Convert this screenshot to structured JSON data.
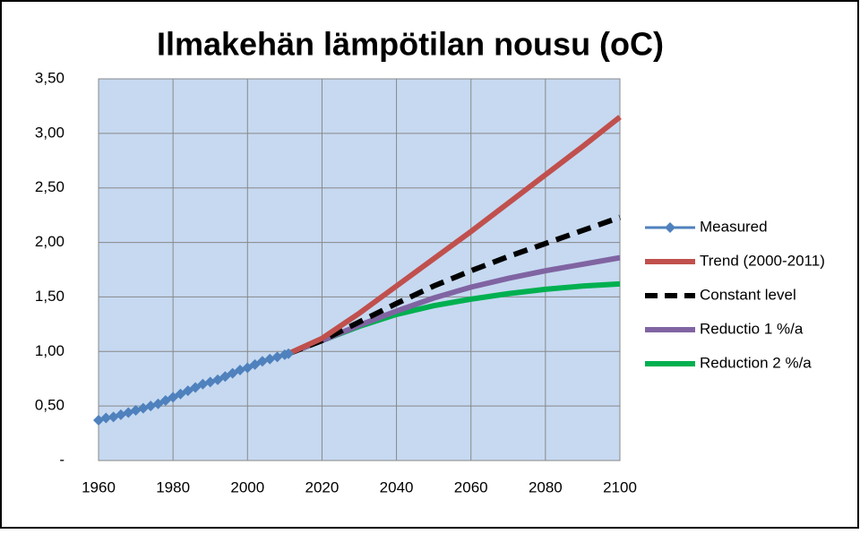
{
  "chart_data": {
    "type": "line",
    "title": "Ilmakehän lämpötilan nousu (oC)",
    "xlim": [
      1960,
      2100
    ],
    "xticks": [
      1960,
      1980,
      2000,
      2020,
      2040,
      2060,
      2080,
      2100
    ],
    "ylim": [
      0,
      3.5
    ],
    "yticks": [
      {
        "value": 0,
        "label": "-"
      },
      {
        "value": 0.5,
        "label": "0,50"
      },
      {
        "value": 1,
        "label": "1,00"
      },
      {
        "value": 1.5,
        "label": "1,50"
      },
      {
        "value": 2,
        "label": "2,00"
      },
      {
        "value": 2.5,
        "label": "2,50"
      },
      {
        "value": 3,
        "label": "3,00"
      },
      {
        "value": 3.5,
        "label": "3,50"
      }
    ],
    "grid": true,
    "legend": "right",
    "series": [
      {
        "name": "Measured",
        "color": "#4f81bd",
        "marker": "diamond",
        "x": [
          1960,
          1962,
          1964,
          1966,
          1968,
          1970,
          1972,
          1974,
          1976,
          1978,
          1980,
          1982,
          1984,
          1986,
          1988,
          1990,
          1992,
          1994,
          1996,
          1998,
          2000,
          2002,
          2004,
          2006,
          2008,
          2010,
          2011
        ],
        "values": [
          0.37,
          0.39,
          0.4,
          0.42,
          0.44,
          0.46,
          0.48,
          0.5,
          0.52,
          0.55,
          0.58,
          0.61,
          0.64,
          0.67,
          0.7,
          0.72,
          0.74,
          0.77,
          0.8,
          0.83,
          0.85,
          0.88,
          0.91,
          0.93,
          0.95,
          0.97,
          0.98
        ]
      },
      {
        "name": "Trend (2000-2011)",
        "color": "#c0504d",
        "x": [
          2011,
          2020,
          2030,
          2040,
          2050,
          2060,
          2070,
          2080,
          2090,
          2100
        ],
        "values": [
          0.98,
          1.12,
          1.35,
          1.6,
          1.85,
          2.1,
          2.36,
          2.62,
          2.88,
          3.15
        ]
      },
      {
        "name": "Constant level",
        "color": "#000000",
        "dash": true,
        "x": [
          2011,
          2020,
          2030,
          2040,
          2050,
          2060,
          2070,
          2080,
          2090,
          2100
        ],
        "values": [
          0.98,
          1.1,
          1.27,
          1.44,
          1.6,
          1.74,
          1.87,
          1.99,
          2.11,
          2.23
        ]
      },
      {
        "name": "Reductio 1 %/a",
        "color": "#8064a2",
        "x": [
          2011,
          2020,
          2030,
          2040,
          2050,
          2060,
          2070,
          2080,
          2090,
          2100
        ],
        "values": [
          0.98,
          1.1,
          1.24,
          1.37,
          1.49,
          1.59,
          1.67,
          1.74,
          1.8,
          1.86
        ]
      },
      {
        "name": "Reduction 2 %/a",
        "color": "#00b050",
        "x": [
          2011,
          2020,
          2030,
          2040,
          2050,
          2060,
          2070,
          2080,
          2090,
          2100
        ],
        "values": [
          0.98,
          1.1,
          1.23,
          1.34,
          1.42,
          1.48,
          1.53,
          1.57,
          1.6,
          1.62
        ]
      }
    ]
  }
}
